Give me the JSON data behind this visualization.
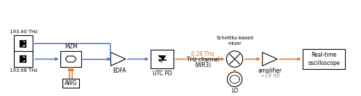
{
  "blue_color": "#4472C4",
  "orange_color": "#E07020",
  "black_color": "#000000",
  "gray_color": "#999999",
  "laser1_label": "193.40 THz",
  "laser2_label": "193.68 THz",
  "mzm_label": "MZM",
  "awg_label": "AWG",
  "edfa_label": "EDFA",
  "utcpd_label": "UTC PD",
  "thz_freq_label": "0.28 THz",
  "thz_channel_label": "THz channel",
  "wr3_label": "(WR3)",
  "mixer_label": "Schottky-based\nmixer",
  "amp_label": "amplifier",
  "amp_gain_label": "+29 dB",
  "lo_label": "LO",
  "scope_label": "Real-time\noscilloscope",
  "figsize": [
    5.2,
    1.39
  ],
  "dpi": 100
}
